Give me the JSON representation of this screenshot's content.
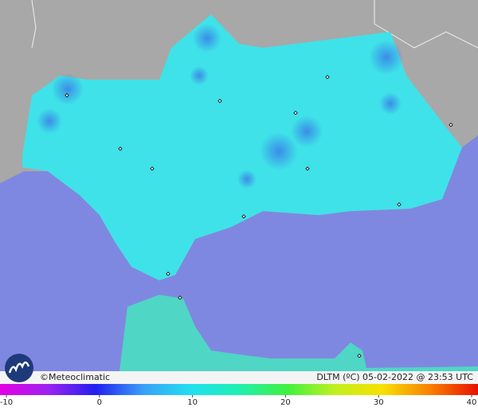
{
  "credit": "©Meteoclimatic",
  "caption": "DLTM (ºC) 05-02-2022 @ 23:53 UTC",
  "color_scale": {
    "ticks": [
      -10,
      0,
      10,
      20,
      30,
      40
    ]
  }
}
